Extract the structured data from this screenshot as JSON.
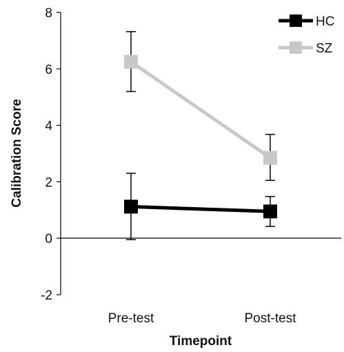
{
  "chart_data": {
    "type": "line",
    "title": "",
    "xlabel": "Timepoint",
    "ylabel": "Calibration Score",
    "categories": [
      "Pre-test",
      "Post-test"
    ],
    "ylim": [
      -2,
      8
    ],
    "yticks": [
      -2,
      0,
      2,
      4,
      6,
      8
    ],
    "grid": false,
    "legend": "top-right",
    "series": [
      {
        "name": "HC",
        "color": "#000000",
        "marker": "square",
        "values": [
          1.12,
          0.95
        ],
        "error_low": [
          -0.05,
          0.42
        ],
        "error_high": [
          2.3,
          1.48
        ]
      },
      {
        "name": "SZ",
        "color": "#c8c8c8",
        "marker": "square",
        "values": [
          6.25,
          2.85
        ],
        "error_low": [
          5.2,
          2.05
        ],
        "error_high": [
          7.32,
          3.68
        ]
      }
    ]
  }
}
